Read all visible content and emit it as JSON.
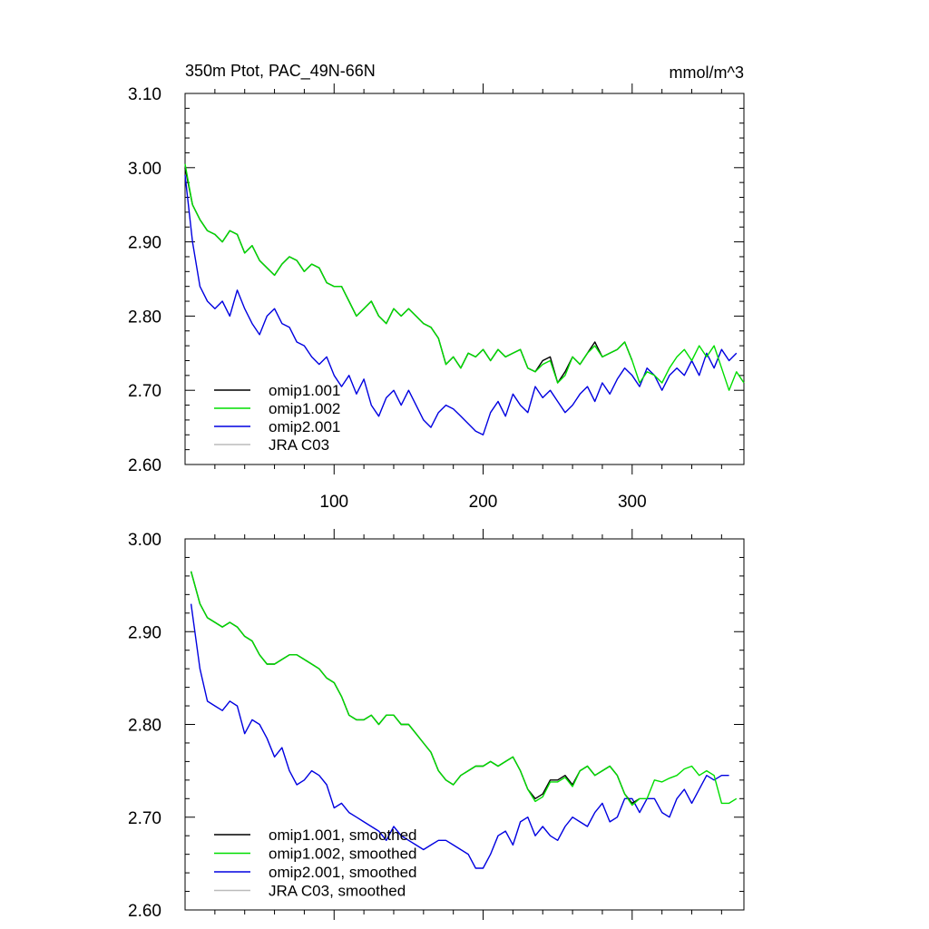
{
  "title_left": "350m Ptot, PAC_49N-66N",
  "title_right": "mmol/m^3",
  "colors": {
    "omip1_001": "#000000",
    "omip1_002": "#00dd00",
    "omip2_001": "#0000e0",
    "jra_c03": "#bbbbbb"
  },
  "chart_data": [
    {
      "type": "line",
      "id": "raw",
      "xlim": [
        0,
        375
      ],
      "ylim": [
        2.6,
        3.1
      ],
      "xticks": [
        100,
        200,
        300
      ],
      "xtick_labels": [
        "100",
        "200",
        "300"
      ],
      "yticks": [
        2.6,
        2.7,
        2.8,
        2.9,
        3.0,
        3.1
      ],
      "ytick_labels": [
        "2.60",
        "2.70",
        "2.80",
        "2.90",
        "3.00",
        "3.10"
      ],
      "legend_position": "bottom-left",
      "legend": [
        "omip1.001",
        "omip1.002",
        "omip2.001",
        "JRA C03"
      ],
      "series": [
        {
          "name": "omip1.001",
          "color_key": "omip1_001",
          "x": [
            0,
            5,
            10,
            15,
            20,
            25,
            30,
            35,
            40,
            45,
            50,
            55,
            60,
            65,
            70,
            75,
            80,
            85,
            90,
            95,
            100,
            105,
            110,
            115,
            120,
            125,
            130,
            135,
            140,
            145,
            150,
            155,
            160,
            165,
            170,
            175,
            180,
            185,
            190,
            195,
            200,
            205,
            210,
            215,
            220,
            225,
            230,
            235,
            240,
            245,
            250,
            255,
            260,
            265,
            270,
            275,
            280,
            285,
            290,
            295,
            300
          ],
          "y": [
            3.0,
            2.95,
            2.93,
            2.915,
            2.91,
            2.9,
            2.915,
            2.91,
            2.885,
            2.895,
            2.875,
            2.865,
            2.855,
            2.87,
            2.88,
            2.875,
            2.86,
            2.87,
            2.865,
            2.845,
            2.84,
            2.84,
            2.82,
            2.8,
            2.81,
            2.82,
            2.8,
            2.79,
            2.81,
            2.8,
            2.81,
            2.8,
            2.79,
            2.785,
            2.77,
            2.735,
            2.745,
            2.73,
            2.75,
            2.745,
            2.755,
            2.74,
            2.755,
            2.745,
            2.75,
            2.755,
            2.73,
            2.725,
            2.74,
            2.745,
            2.71,
            2.725,
            2.745,
            2.735,
            2.75,
            2.765,
            2.745,
            2.75,
            2.755,
            2.765,
            2.74
          ]
        },
        {
          "name": "omip1.002",
          "color_key": "omip1_002",
          "x": [
            0,
            5,
            10,
            15,
            20,
            25,
            30,
            35,
            40,
            45,
            50,
            55,
            60,
            65,
            70,
            75,
            80,
            85,
            90,
            95,
            100,
            105,
            110,
            115,
            120,
            125,
            130,
            135,
            140,
            145,
            150,
            155,
            160,
            165,
            170,
            175,
            180,
            185,
            190,
            195,
            200,
            205,
            210,
            215,
            220,
            225,
            230,
            235,
            240,
            245,
            250,
            255,
            260,
            265,
            270,
            275,
            280,
            285,
            290,
            295,
            300,
            305,
            310,
            315,
            320,
            325,
            330,
            335,
            340,
            345,
            350,
            355,
            360,
            365,
            370,
            375
          ],
          "y": [
            3.005,
            2.95,
            2.93,
            2.915,
            2.91,
            2.9,
            2.915,
            2.91,
            2.885,
            2.895,
            2.875,
            2.865,
            2.855,
            2.87,
            2.88,
            2.875,
            2.86,
            2.87,
            2.865,
            2.845,
            2.84,
            2.84,
            2.82,
            2.8,
            2.81,
            2.82,
            2.8,
            2.79,
            2.81,
            2.8,
            2.81,
            2.8,
            2.79,
            2.785,
            2.77,
            2.735,
            2.745,
            2.73,
            2.75,
            2.745,
            2.755,
            2.74,
            2.755,
            2.745,
            2.75,
            2.755,
            2.73,
            2.725,
            2.735,
            2.74,
            2.71,
            2.72,
            2.745,
            2.735,
            2.75,
            2.76,
            2.745,
            2.75,
            2.755,
            2.765,
            2.74,
            2.71,
            2.725,
            2.72,
            2.71,
            2.73,
            2.745,
            2.755,
            2.74,
            2.76,
            2.745,
            2.76,
            2.73,
            2.7,
            2.725,
            2.71
          ]
        },
        {
          "name": "omip2.001",
          "color_key": "omip2_001",
          "x": [
            0,
            5,
            10,
            15,
            20,
            25,
            30,
            35,
            40,
            45,
            50,
            55,
            60,
            65,
            70,
            75,
            80,
            85,
            90,
            95,
            100,
            105,
            110,
            115,
            120,
            125,
            130,
            135,
            140,
            145,
            150,
            155,
            160,
            165,
            170,
            175,
            180,
            185,
            190,
            195,
            200,
            205,
            210,
            215,
            220,
            225,
            230,
            235,
            240,
            245,
            250,
            255,
            260,
            265,
            270,
            275,
            280,
            285,
            290,
            295,
            300,
            305,
            310,
            315,
            320,
            325,
            330,
            335,
            340,
            345,
            350,
            355,
            360,
            365,
            370
          ],
          "y": [
            2.99,
            2.9,
            2.84,
            2.82,
            2.81,
            2.82,
            2.8,
            2.835,
            2.81,
            2.79,
            2.775,
            2.8,
            2.81,
            2.79,
            2.785,
            2.765,
            2.76,
            2.745,
            2.735,
            2.745,
            2.72,
            2.705,
            2.72,
            2.695,
            2.715,
            2.68,
            2.665,
            2.69,
            2.7,
            2.68,
            2.7,
            2.68,
            2.66,
            2.65,
            2.67,
            2.68,
            2.675,
            2.665,
            2.655,
            2.645,
            2.64,
            2.67,
            2.685,
            2.665,
            2.695,
            2.68,
            2.67,
            2.705,
            2.69,
            2.7,
            2.685,
            2.67,
            2.68,
            2.695,
            2.705,
            2.685,
            2.71,
            2.695,
            2.715,
            2.73,
            2.72,
            2.705,
            2.73,
            2.72,
            2.7,
            2.72,
            2.73,
            2.72,
            2.74,
            2.72,
            2.75,
            2.73,
            2.755,
            2.74,
            2.75
          ]
        }
      ]
    },
    {
      "type": "line",
      "id": "smoothed",
      "xlim": [
        0,
        375
      ],
      "ylim": [
        2.6,
        3.0
      ],
      "xticks": [
        100,
        200,
        300
      ],
      "yticks": [
        2.6,
        2.7,
        2.8,
        2.9,
        3.0
      ],
      "ytick_labels": [
        "2.60",
        "2.70",
        "2.80",
        "2.90",
        "3.00"
      ],
      "legend_position": "bottom-left",
      "legend": [
        "omip1.001, smoothed",
        "omip1.002, smoothed",
        "omip2.001, smoothed",
        "JRA C03, smoothed"
      ],
      "series": [
        {
          "name": "omip1.001, smoothed",
          "color_key": "omip1_001",
          "x": [
            4,
            10,
            15,
            20,
            25,
            30,
            35,
            40,
            45,
            50,
            55,
            60,
            65,
            70,
            75,
            80,
            85,
            90,
            95,
            100,
            105,
            110,
            115,
            120,
            125,
            130,
            135,
            140,
            145,
            150,
            155,
            160,
            165,
            170,
            175,
            180,
            185,
            190,
            195,
            200,
            205,
            210,
            215,
            220,
            225,
            230,
            235,
            240,
            245,
            250,
            255,
            260,
            265,
            270,
            275,
            280,
            285,
            290,
            295,
            300,
            305
          ],
          "y": [
            2.965,
            2.93,
            2.915,
            2.91,
            2.905,
            2.91,
            2.905,
            2.895,
            2.89,
            2.875,
            2.865,
            2.865,
            2.87,
            2.875,
            2.875,
            2.87,
            2.865,
            2.86,
            2.85,
            2.845,
            2.83,
            2.81,
            2.805,
            2.805,
            2.81,
            2.8,
            2.81,
            2.81,
            2.8,
            2.8,
            2.79,
            2.78,
            2.77,
            2.75,
            2.74,
            2.735,
            2.745,
            2.75,
            2.755,
            2.755,
            2.76,
            2.755,
            2.76,
            2.765,
            2.75,
            2.73,
            2.72,
            2.725,
            2.74,
            2.74,
            2.745,
            2.735,
            2.75,
            2.755,
            2.745,
            2.75,
            2.755,
            2.745,
            2.725,
            2.715,
            2.72
          ]
        },
        {
          "name": "omip1.002, smoothed",
          "color_key": "omip1_002",
          "x": [
            4,
            10,
            15,
            20,
            25,
            30,
            35,
            40,
            45,
            50,
            55,
            60,
            65,
            70,
            75,
            80,
            85,
            90,
            95,
            100,
            105,
            110,
            115,
            120,
            125,
            130,
            135,
            140,
            145,
            150,
            155,
            160,
            165,
            170,
            175,
            180,
            185,
            190,
            195,
            200,
            205,
            210,
            215,
            220,
            225,
            230,
            235,
            240,
            245,
            250,
            255,
            260,
            265,
            270,
            275,
            280,
            285,
            290,
            295,
            300,
            305,
            310,
            315,
            320,
            325,
            330,
            335,
            340,
            345,
            350,
            355,
            360,
            365,
            370
          ],
          "y": [
            2.965,
            2.93,
            2.915,
            2.91,
            2.905,
            2.91,
            2.905,
            2.895,
            2.89,
            2.875,
            2.865,
            2.865,
            2.87,
            2.875,
            2.875,
            2.87,
            2.865,
            2.86,
            2.85,
            2.845,
            2.83,
            2.81,
            2.805,
            2.805,
            2.81,
            2.8,
            2.81,
            2.81,
            2.8,
            2.8,
            2.79,
            2.78,
            2.77,
            2.75,
            2.74,
            2.735,
            2.745,
            2.75,
            2.755,
            2.755,
            2.76,
            2.755,
            2.76,
            2.765,
            2.75,
            2.73,
            2.717,
            2.722,
            2.738,
            2.738,
            2.743,
            2.733,
            2.75,
            2.755,
            2.745,
            2.75,
            2.755,
            2.745,
            2.725,
            2.713,
            2.72,
            2.72,
            2.74,
            2.738,
            2.742,
            2.745,
            2.752,
            2.755,
            2.745,
            2.75,
            2.745,
            2.715,
            2.715,
            2.72
          ]
        },
        {
          "name": "omip2.001, smoothed",
          "color_key": "omip2_001",
          "x": [
            4,
            10,
            15,
            20,
            25,
            30,
            35,
            40,
            45,
            50,
            55,
            60,
            65,
            70,
            75,
            80,
            85,
            90,
            95,
            100,
            105,
            110,
            115,
            120,
            125,
            130,
            135,
            140,
            145,
            150,
            155,
            160,
            165,
            170,
            175,
            180,
            185,
            190,
            195,
            200,
            205,
            210,
            215,
            220,
            225,
            230,
            235,
            240,
            245,
            250,
            255,
            260,
            265,
            270,
            275,
            280,
            285,
            290,
            295,
            300,
            305,
            310,
            315,
            320,
            325,
            330,
            335,
            340,
            345,
            350,
            355,
            360,
            365
          ],
          "y": [
            2.93,
            2.86,
            2.825,
            2.82,
            2.815,
            2.825,
            2.82,
            2.79,
            2.805,
            2.8,
            2.785,
            2.765,
            2.775,
            2.75,
            2.735,
            2.74,
            2.75,
            2.745,
            2.735,
            2.71,
            2.715,
            2.705,
            2.7,
            2.695,
            2.69,
            2.685,
            2.675,
            2.69,
            2.68,
            2.675,
            2.67,
            2.665,
            2.67,
            2.675,
            2.675,
            2.67,
            2.665,
            2.66,
            2.645,
            2.645,
            2.66,
            2.68,
            2.685,
            2.67,
            2.695,
            2.7,
            2.68,
            2.69,
            2.68,
            2.675,
            2.69,
            2.7,
            2.695,
            2.69,
            2.705,
            2.715,
            2.695,
            2.7,
            2.72,
            2.72,
            2.705,
            2.72,
            2.72,
            2.705,
            2.7,
            2.72,
            2.73,
            2.715,
            2.73,
            2.745,
            2.74,
            2.745,
            2.745
          ]
        }
      ]
    }
  ]
}
